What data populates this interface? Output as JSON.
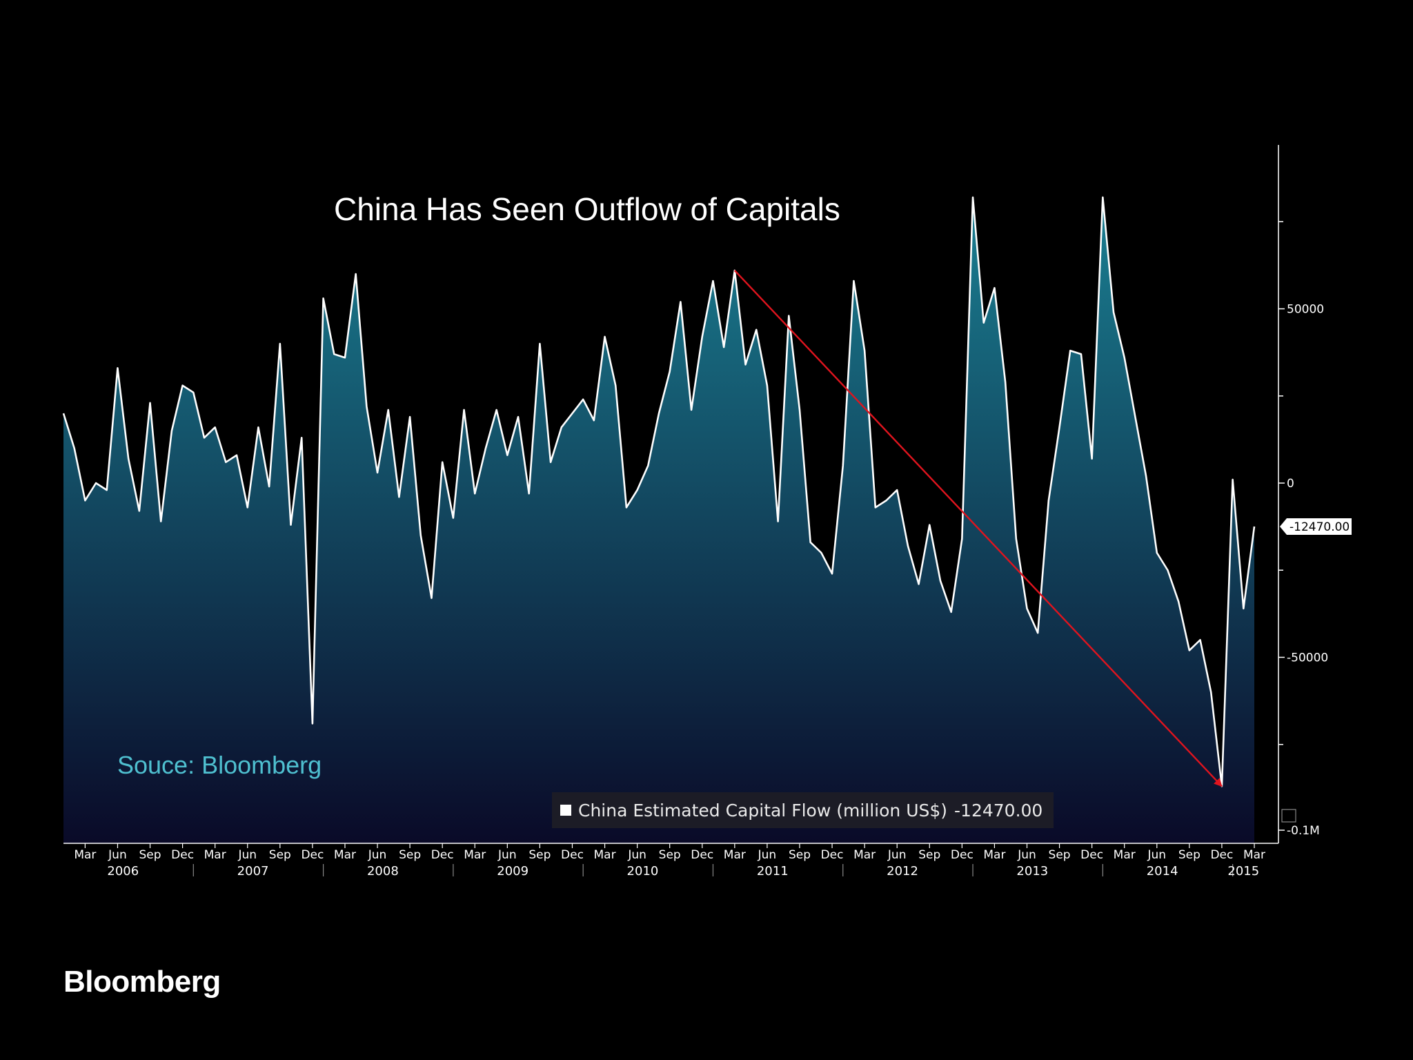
{
  "chart_data": {
    "type": "area",
    "title": "China Has Seen Outflow of Capitals",
    "source": "Souce: Bloomberg",
    "series": [
      {
        "name": "China Estimated Capital Flow (million US$)",
        "last_value": "-12470.00",
        "start": "2006-01",
        "frequency": "monthly",
        "values": [
          20000,
          10000,
          -5000,
          0,
          -2000,
          33000,
          7000,
          -8000,
          23000,
          -11000,
          15000,
          28000,
          26000,
          13000,
          16000,
          6000,
          8000,
          -7000,
          16000,
          -1000,
          40000,
          -12000,
          13000,
          -69000,
          53000,
          37000,
          36000,
          60000,
          22000,
          3000,
          21000,
          -4000,
          19000,
          -15000,
          -33000,
          6000,
          -10000,
          21000,
          -3000,
          10000,
          21000,
          8000,
          19000,
          -3000,
          40000,
          6000,
          16000,
          20000,
          24000,
          18000,
          42000,
          28000,
          -7000,
          -2000,
          5000,
          20000,
          32000,
          52000,
          21000,
          42000,
          58000,
          39000,
          61000,
          34000,
          44000,
          28000,
          -11000,
          48000,
          21000,
          -17000,
          -20000,
          -26000,
          5000,
          58000,
          38000,
          -7000,
          -5000,
          -2000,
          -18000,
          -29000,
          -12000,
          -28000,
          -37000,
          -16000,
          82000,
          46000,
          56000,
          29000,
          -16000,
          -36000,
          -43000,
          -5000,
          16000,
          38000,
          37000,
          7000,
          82000,
          49000,
          36000,
          19000,
          2000,
          -20000,
          -25000,
          -34000,
          -48000,
          -45000,
          -60000,
          -87000,
          1000,
          -36000,
          -12470
        ]
      }
    ],
    "ylim": [
      -100000,
      100000
    ],
    "y_ticks": [
      {
        "value": 50000,
        "label": "50000"
      },
      {
        "value": 0,
        "label": "0"
      },
      {
        "value": -50000,
        "label": "-50000"
      },
      {
        "value": -100000,
        "label": "-0.1M"
      }
    ],
    "y_minor_ticks": [
      75000,
      25000,
      -25000,
      -75000
    ],
    "x_month_labels": [
      "Mar",
      "Jun",
      "Sep",
      "Dec",
      "Mar",
      "Jun",
      "Sep",
      "Dec",
      "Mar",
      "Jun",
      "Sep",
      "Dec",
      "Mar",
      "Jun",
      "Sep",
      "Dec",
      "Mar",
      "Jun",
      "Sep",
      "Dec",
      "Mar",
      "Jun",
      "Sep",
      "Dec",
      "Mar",
      "Jun",
      "Sep",
      "Dec",
      "Mar",
      "Jun",
      "Sep",
      "Dec",
      "Mar",
      "Jun",
      "Sep",
      "Dec",
      "Mar"
    ],
    "x_month_indices": [
      2,
      5,
      8,
      11,
      14,
      17,
      20,
      23,
      26,
      29,
      32,
      35,
      38,
      41,
      44,
      47,
      50,
      53,
      56,
      59,
      62,
      65,
      68,
      71,
      74,
      77,
      80,
      83,
      86,
      89,
      92,
      95,
      98,
      101,
      104,
      107,
      110
    ],
    "x_years": [
      "2006",
      "2007",
      "2008",
      "2009",
      "2010",
      "2011",
      "2012",
      "2013",
      "2014",
      "2015"
    ],
    "x_year_start_indices": [
      0,
      12,
      24,
      36,
      48,
      60,
      72,
      84,
      96,
      108
    ],
    "annotation": {
      "type": "arrow",
      "color": "#e0141e",
      "from_index": 62,
      "from_value": 61000,
      "to_index": 107,
      "to_value": -87000
    }
  },
  "legend": {
    "label": "China Estimated Capital Flow (million US$)",
    "value": "-12470.00"
  },
  "brand": "Bloomberg",
  "colors": {
    "background": "#000000",
    "line": "#ffffff",
    "fill_top": "#1a7f92",
    "fill_bottom": "#0a0a28",
    "annotation": "#e0141e",
    "source_text": "#4fc0d0"
  }
}
